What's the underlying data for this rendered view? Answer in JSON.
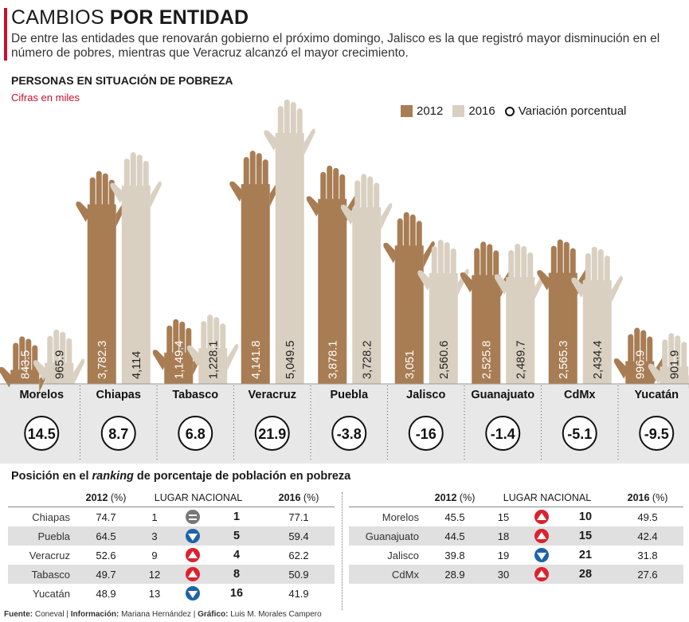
{
  "header": {
    "title_light": "CAMBIOS",
    "title_bold": "POR ENTIDAD",
    "subtitle": "De entre las entidades que renovarán gobierno el próximo domingo, Jalisco es la que registró mayor disminución en el número de pobres, mientras que Veracruz alcanzó el mayor crecimiento.",
    "accent_color": "#c8102e"
  },
  "chart_data": {
    "type": "bar",
    "title": "PERSONAS EN SITUACIÓN DE POBREZA",
    "subtitle": "Cifras en miles",
    "categories": [
      "Morelos",
      "Chiapas",
      "Tabasco",
      "Veracruz",
      "Puebla",
      "Jalisco",
      "Guanajuato",
      "CdMx",
      "Yucatán"
    ],
    "series": [
      {
        "name": "2012",
        "color": "#a87d54",
        "values": [
          843.5,
          3782.3,
          1149.4,
          4141.8,
          3878.1,
          3051,
          2525.8,
          2565.3,
          996.9
        ],
        "labels": [
          "843.5",
          "3,782.3",
          "1,149.4",
          "4,141.8",
          "3,878.1",
          "3,051",
          "2,525.8",
          "2,565.3",
          "996.9"
        ]
      },
      {
        "name": "2016",
        "color": "#d9d0c1",
        "values": [
          965.9,
          4114,
          1228.1,
          5049.5,
          3728.2,
          2560.6,
          2489.7,
          2434.4,
          901.9
        ],
        "labels": [
          "965.9",
          "4,114",
          "1,228.1",
          "5,049.5",
          "3,728.2",
          "2,560.6",
          "2,489.7",
          "2,434.4",
          "901.9"
        ]
      }
    ],
    "variation_label": "Variación porcentual",
    "variation": [
      "14.5",
      "8.7",
      "6.8",
      "21.9",
      "-3.8",
      "-16",
      "-1.4",
      "-5.1",
      "-9.5"
    ],
    "bar_shape": "raised-hand"
  },
  "ranking": {
    "title_pre": "Posición en el ",
    "title_em": "ranking",
    "title_post": "  de porcentaje de población en pobreza",
    "headers": {
      "y2012": "2012",
      "pct": "(%)",
      "lugar": "LUGAR NACIONAL",
      "y2016": "2016"
    },
    "left": [
      {
        "state": "Chiapas",
        "p2012": "74.7",
        "r2012": "1",
        "trend": "eq",
        "r2016": "1",
        "p2016": "77.1"
      },
      {
        "state": "Puebla",
        "p2012": "64.5",
        "r2012": "3",
        "trend": "down",
        "r2016": "5",
        "p2016": "59.4"
      },
      {
        "state": "Veracruz",
        "p2012": "52.6",
        "r2012": "9",
        "trend": "up",
        "r2016": "4",
        "p2016": "62.2"
      },
      {
        "state": "Tabasco",
        "p2012": "49.7",
        "r2012": "12",
        "trend": "up",
        "r2016": "8",
        "p2016": "50.9"
      },
      {
        "state": "Yucatán",
        "p2012": "48.9",
        "r2012": "13",
        "trend": "down",
        "r2016": "16",
        "p2016": "41.9"
      }
    ],
    "right": [
      {
        "state": "Morelos",
        "p2012": "45.5",
        "r2012": "15",
        "trend": "up",
        "r2016": "10",
        "p2016": "49.5"
      },
      {
        "state": "Guanajuato",
        "p2012": "44.5",
        "r2012": "18",
        "trend": "up",
        "r2016": "15",
        "p2016": "42.4"
      },
      {
        "state": "Jalisco",
        "p2012": "39.8",
        "r2012": "19",
        "trend": "down",
        "r2016": "21",
        "p2016": "31.8"
      },
      {
        "state": "CdMx",
        "p2012": "28.9",
        "r2012": "30",
        "trend": "up",
        "r2016": "28",
        "p2016": "27.6"
      }
    ]
  },
  "footer": {
    "fuente_label": "Fuente:",
    "fuente": "Coneval",
    "info_label": "Información:",
    "info": "Mariana Hernández",
    "grafico_label": "Gráfico:",
    "grafico": "Luis M. Morales Campero",
    "sep": " | "
  }
}
